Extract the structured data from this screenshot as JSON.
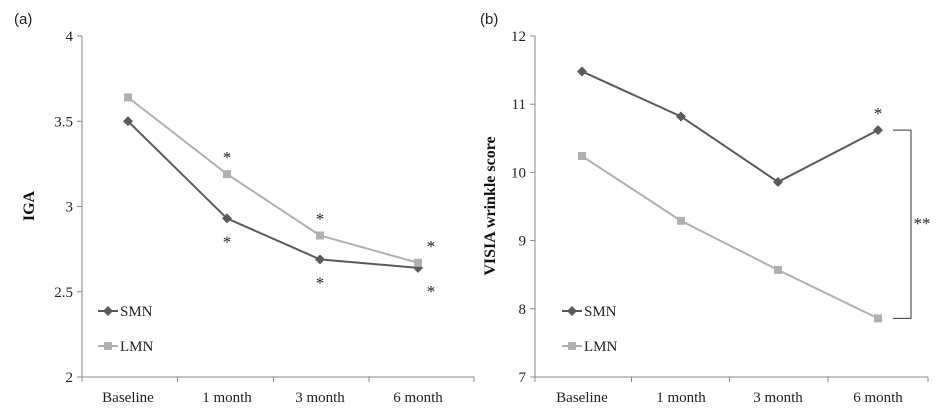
{
  "chart_data": [
    {
      "panel_label": "(a)",
      "type": "line",
      "categories": [
        "Baseline",
        "1 month",
        "3 month",
        "6 month"
      ],
      "ylabel": "IGA",
      "xlabel": "",
      "ylim": [
        2,
        4
      ],
      "yticks": [
        "2",
        "2.5",
        "3",
        "3.5",
        "4"
      ],
      "legend_position": "bottom-left",
      "series": [
        {
          "name": "SMN",
          "color": "#5a5a5a",
          "marker": "diamond",
          "values": [
            3.5,
            2.93,
            2.69,
            2.64
          ],
          "marks": [
            "",
            "*",
            "*",
            "*"
          ]
        },
        {
          "name": "LMN",
          "color": "#b0b0b0",
          "marker": "square",
          "values": [
            3.64,
            3.19,
            2.83,
            2.67
          ],
          "marks": [
            "",
            "*",
            "*",
            "*"
          ]
        }
      ]
    },
    {
      "panel_label": "(b)",
      "type": "line",
      "categories": [
        "Baseline",
        "1 month",
        "3 month",
        "6 month"
      ],
      "ylabel": "VISIA wrinkle score",
      "xlabel": "",
      "ylim": [
        7,
        12
      ],
      "yticks": [
        "7",
        "8",
        "9",
        "10",
        "11",
        "12"
      ],
      "legend_position": "bottom-left",
      "series": [
        {
          "name": "SMN",
          "color": "#5a5a5a",
          "marker": "diamond",
          "values": [
            11.48,
            10.82,
            9.86,
            10.62
          ],
          "marks": [
            "",
            "",
            "",
            ""
          ]
        },
        {
          "name": "LMN",
          "color": "#b0b0b0",
          "marker": "square",
          "values": [
            10.24,
            9.29,
            8.57,
            7.86
          ],
          "marks": [
            "",
            "",
            "",
            "*"
          ]
        }
      ],
      "bracket_label": "**"
    }
  ]
}
